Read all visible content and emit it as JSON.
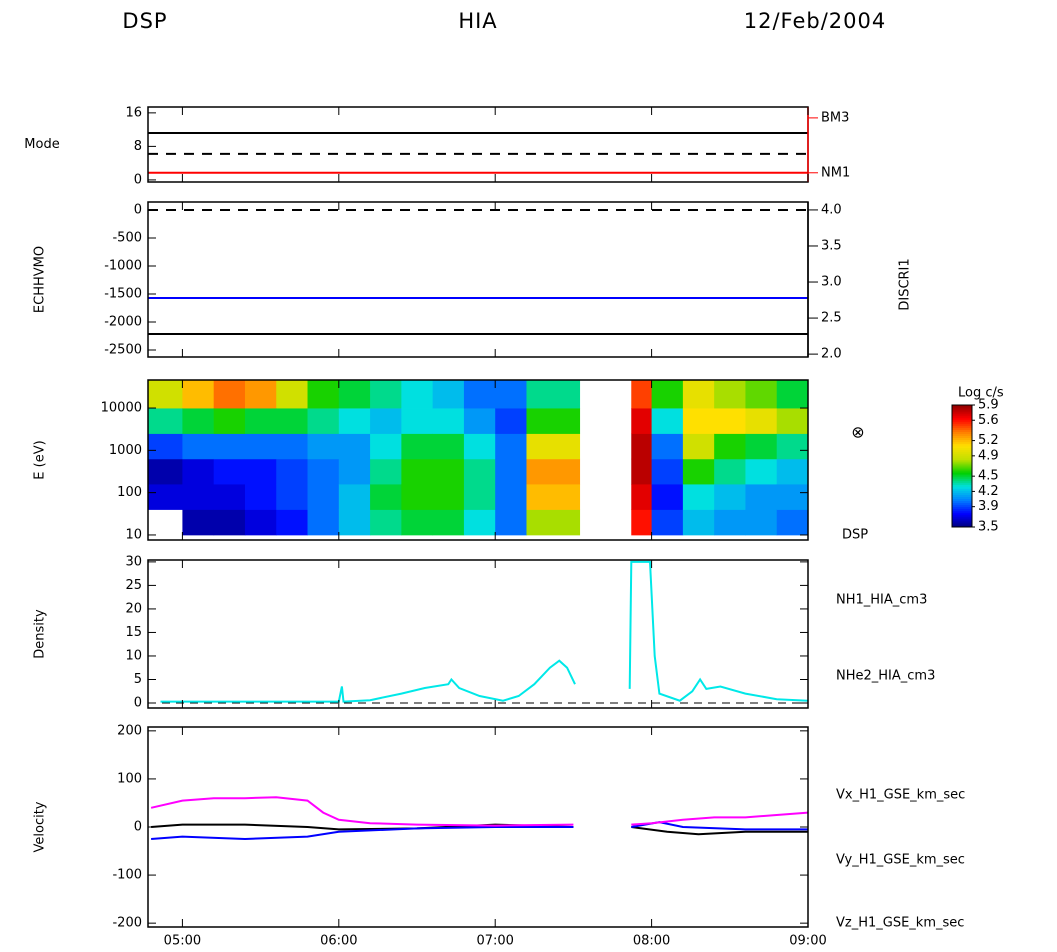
{
  "header": {
    "left": "DSP",
    "center": "HIA",
    "right": "12/Feb/2004"
  },
  "chart_data": [
    {
      "type": "line",
      "ylabel": "Mode",
      "xlim": [
        4.78,
        9.0
      ],
      "xticks": [
        {
          "value": 5,
          "label": "05:00"
        },
        {
          "value": 6,
          "label": "06:00"
        },
        {
          "value": 7,
          "label": "07:00"
        },
        {
          "value": 8,
          "label": "08:00"
        },
        {
          "value": 9,
          "label": "09:00"
        }
      ],
      "ylim": [
        -0.5,
        17.4
      ],
      "yticks": [
        0,
        8,
        16
      ],
      "y2lim": [
        -0.5,
        17.4
      ],
      "y2ticks": [
        {
          "value": 14.8,
          "label": "BM3"
        },
        {
          "value": 1.7,
          "label": "NM1"
        }
      ],
      "y2color": "#ff0000",
      "series": [
        {
          "color": "#000000",
          "dash": false,
          "x": [
            4.78,
            9.0
          ],
          "values": [
            11.2,
            11.2
          ]
        },
        {
          "color": "#000000",
          "dash": true,
          "x": [
            4.78,
            9.0
          ],
          "values": [
            6.2,
            6.2
          ]
        },
        {
          "color": "#ff0000",
          "dash": false,
          "x": [
            4.78,
            9.0
          ],
          "values": [
            1.7,
            1.7
          ]
        }
      ]
    },
    {
      "type": "line",
      "ylabel": "ECHHVMO",
      "y2label": "DISCRI1",
      "xlim": [
        4.78,
        9.0
      ],
      "xticks": [
        {
          "value": 5,
          "label": "05:00"
        },
        {
          "value": 6,
          "label": "06:00"
        },
        {
          "value": 7,
          "label": "07:00"
        },
        {
          "value": 8,
          "label": "08:00"
        },
        {
          "value": 9,
          "label": "09:00"
        }
      ],
      "ylim": [
        -2625,
        143
      ],
      "yticks": [
        -2500,
        -2000,
        -1500,
        -1000,
        -500,
        0
      ],
      "y2lim": [
        1.96,
        4.11
      ],
      "y2ticks": [
        {
          "value": 2,
          "label": "2.0"
        },
        2.5,
        {
          "value": 3,
          "label": "3.0"
        },
        3.5,
        {
          "value": 4,
          "label": "4.0"
        }
      ],
      "y2color": "#000000",
      "series": [
        {
          "color": "#000000",
          "dash": true,
          "x": [
            4.78,
            9.0
          ],
          "values": [
            0,
            0
          ]
        },
        {
          "color": "#0000ff",
          "dash": false,
          "x": [
            4.78,
            9.0
          ],
          "values": [
            -1571,
            -1571
          ]
        },
        {
          "color": "#000000",
          "dash": false,
          "x": [
            4.78,
            9.0
          ],
          "values": [
            -2214,
            -2214
          ]
        }
      ]
    },
    {
      "type": "heatmap",
      "ylabel": "E (eV)",
      "log_y": true,
      "xlim": [
        4.78,
        9.0
      ],
      "xticks": [
        {
          "value": 5,
          "label": "05:00"
        },
        {
          "value": 6,
          "label": "06:00"
        },
        {
          "value": 7,
          "label": "07:00"
        },
        {
          "value": 8,
          "label": "08:00"
        },
        {
          "value": 9,
          "label": "09:00"
        }
      ],
      "ylim": [
        7.6,
        46000
      ],
      "yticks": [
        10,
        100,
        1000,
        10000
      ],
      "x_edges": [
        4.78,
        5.0,
        5.2,
        5.4,
        5.6,
        5.8,
        6.0,
        6.2,
        6.4,
        6.6,
        6.8,
        7.0,
        7.2,
        7.54,
        7.87,
        8.0,
        8.2,
        8.4,
        8.6,
        8.8,
        9.0
      ],
      "y_edges": [
        10,
        40,
        160,
        630,
        2500,
        10000,
        46000
      ],
      "values": [
        [
          null,
          3.7,
          3.6,
          3.9,
          4.4,
          4.9
        ],
        [
          3.6,
          3.7,
          3.7,
          4.0,
          4.5,
          5.2
        ],
        [
          3.6,
          3.7,
          3.8,
          4.0,
          4.6,
          5.4
        ],
        [
          3.7,
          3.8,
          3.8,
          4.0,
          4.5,
          5.3
        ],
        [
          3.8,
          3.9,
          3.9,
          4.0,
          4.5,
          4.9
        ],
        [
          4.0,
          4.0,
          4.0,
          4.1,
          4.4,
          4.6
        ],
        [
          4.2,
          4.2,
          4.1,
          4.1,
          4.3,
          4.5
        ],
        [
          4.4,
          4.5,
          4.4,
          4.3,
          4.2,
          4.4
        ],
        [
          4.5,
          4.6,
          4.6,
          4.5,
          4.3,
          4.3
        ],
        [
          4.5,
          4.6,
          4.6,
          4.5,
          4.3,
          4.2
        ],
        [
          4.3,
          4.4,
          4.4,
          4.3,
          4.1,
          4.0
        ],
        [
          4.0,
          4.0,
          4.0,
          4.0,
          3.9,
          4.0
        ],
        [
          4.8,
          5.2,
          5.3,
          5.0,
          4.6,
          4.4
        ],
        [
          null,
          null,
          null,
          null,
          null,
          null
        ],
        [
          5.6,
          5.7,
          5.8,
          5.8,
          5.7,
          5.5
        ],
        [
          3.9,
          3.8,
          3.9,
          4.0,
          4.3,
          4.6
        ],
        [
          4.2,
          4.3,
          4.6,
          4.9,
          5.1,
          5.0
        ],
        [
          4.1,
          4.2,
          4.4,
          4.6,
          5.1,
          4.8
        ],
        [
          4.1,
          4.1,
          4.3,
          4.5,
          5.0,
          4.7
        ],
        [
          4.0,
          4.1,
          4.2,
          4.4,
          4.8,
          4.5
        ]
      ],
      "colorbar": {
        "title": "Log c/s",
        "clim": [
          3.5,
          5.9
        ],
        "ticks": [
          3.5,
          3.9,
          4.2,
          4.5,
          4.9,
          5.2,
          5.6,
          5.9
        ],
        "colormap": [
          "#00007a",
          "#0000ff",
          "#0080ff",
          "#00e0e0",
          "#00d000",
          "#c0e000",
          "#ffe000",
          "#ff8000",
          "#ff0000",
          "#900000"
        ]
      },
      "annotations": [
        "⊗",
        "DSP"
      ]
    },
    {
      "type": "line",
      "ylabel": "Density",
      "xlim": [
        4.78,
        9.0
      ],
      "xticks": [
        {
          "value": 5,
          "label": "05:00"
        },
        {
          "value": 6,
          "label": "06:00"
        },
        {
          "value": 7,
          "label": "07:00"
        },
        {
          "value": 8,
          "label": "08:00"
        },
        {
          "value": 9,
          "label": "09:00"
        }
      ],
      "ylim": [
        -1.06,
        30.4
      ],
      "yticks": [
        0,
        5,
        10,
        15,
        20,
        25,
        30
      ],
      "zero_line": true,
      "series": [
        {
          "name": "NH1_HIA_cm3",
          "color": "#00e8e8",
          "x": [
            4.86,
            5.5,
            6.0,
            6.02,
            6.03,
            6.2,
            6.4,
            6.55,
            6.7,
            6.72,
            6.77,
            6.9,
            7.05,
            7.15,
            7.25,
            7.35,
            7.41,
            7.46,
            7.51,
            7.7,
            7.86,
            7.87,
            7.99,
            8.02,
            8.05,
            8.18,
            8.26,
            8.31,
            8.35,
            8.44,
            8.6,
            8.8,
            9.0
          ],
          "values": [
            0.3,
            0.3,
            0.3,
            3.5,
            0.3,
            0.6,
            2,
            3.2,
            4,
            5,
            3.2,
            1.5,
            0.5,
            1.5,
            4,
            7.5,
            9,
            7.5,
            4,
            null,
            3,
            30,
            30,
            10,
            2,
            0.5,
            2.5,
            5,
            3,
            3.5,
            2,
            0.8,
            0.5
          ]
        },
        {
          "name": "NHe2_HIA_cm3",
          "color": "#ff0000",
          "x": [],
          "values": []
        }
      ]
    },
    {
      "type": "line",
      "ylabel": "Velocity",
      "xlim": [
        4.78,
        9.0
      ],
      "xticks": [
        {
          "value": 5,
          "label": "05:00"
        },
        {
          "value": 6,
          "label": "06:00"
        },
        {
          "value": 7,
          "label": "07:00"
        },
        {
          "value": 8,
          "label": "08:00"
        },
        {
          "value": 9,
          "label": "09:00"
        }
      ],
      "ylim": [
        -208,
        208
      ],
      "yticks": [
        -200,
        -100,
        0,
        100,
        200
      ],
      "series": [
        {
          "name": "Vx_H1_GSE_km_sec",
          "color": "#000000",
          "x": [
            4.8,
            5.0,
            5.4,
            5.8,
            6.0,
            6.5,
            7.0,
            7.5,
            7.7,
            7.87,
            8.1,
            8.3,
            8.6,
            9.0
          ],
          "values": [
            0,
            5,
            5,
            0,
            -5,
            -3,
            5,
            0,
            null,
            0,
            -10,
            -15,
            -10,
            -10
          ]
        },
        {
          "name": "Vy_H1_GSE_km_sec",
          "color": "#0000ff",
          "x": [
            4.8,
            5.0,
            5.4,
            5.8,
            6.0,
            6.5,
            7.0,
            7.5,
            7.7,
            7.87,
            8.05,
            8.2,
            8.6,
            9.0
          ],
          "values": [
            -25,
            -20,
            -25,
            -20,
            -10,
            -3,
            0,
            0,
            null,
            0,
            10,
            0,
            -5,
            -5
          ]
        },
        {
          "name": "Vz_H1_GSE_km_sec",
          "color": "#ff00ff",
          "x": [
            4.8,
            5.0,
            5.2,
            5.4,
            5.6,
            5.8,
            5.9,
            6.0,
            6.2,
            6.5,
            7.0,
            7.5,
            7.7,
            7.87,
            8.0,
            8.2,
            8.4,
            8.6,
            8.8,
            9.0
          ],
          "values": [
            40,
            55,
            60,
            60,
            62,
            55,
            30,
            15,
            8,
            5,
            3,
            5,
            null,
            5,
            8,
            15,
            20,
            20,
            25,
            30
          ]
        }
      ]
    }
  ]
}
